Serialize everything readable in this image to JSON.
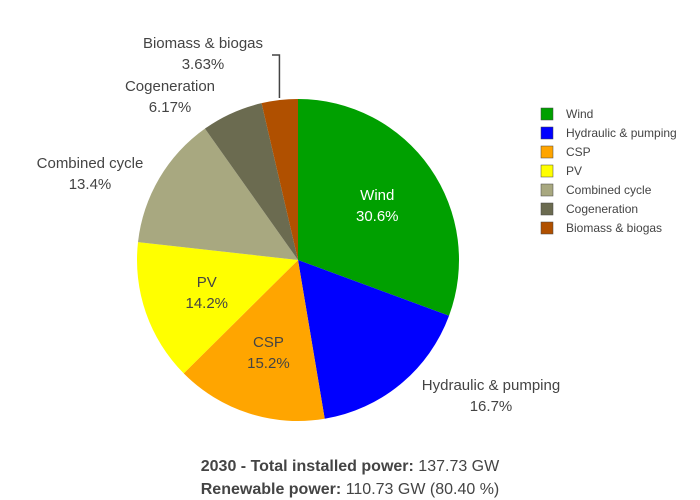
{
  "chart_data": {
    "type": "pie",
    "slices": [
      {
        "label": "Wind",
        "value": 30.6,
        "percent_text": "30.6%",
        "color": "#00a000"
      },
      {
        "label": "Hydraulic & pumping",
        "value": 16.7,
        "percent_text": "16.7%",
        "color": "#0000ff"
      },
      {
        "label": "CSP",
        "value": 15.2,
        "percent_text": "15.2%",
        "color": "#ffa500"
      },
      {
        "label": "PV",
        "value": 14.2,
        "percent_text": "14.2%",
        "color": "#ffff00"
      },
      {
        "label": "Combined cycle",
        "value": 13.4,
        "percent_text": "13.4%",
        "color": "#a8a880"
      },
      {
        "label": "Cogeneration",
        "value": 6.17,
        "percent_text": "6.17%",
        "color": "#6b6b50"
      },
      {
        "label": "Biomass & biogas",
        "value": 3.63,
        "percent_text": "3.63%",
        "color": "#b05000"
      }
    ],
    "legend_position": "right",
    "direction": "clockwise",
    "start": "top"
  },
  "caption": {
    "line1_bold": "2030 - Total installed power:",
    "line1_value": "137.73 GW",
    "line2_bold": "Renewable power:",
    "line2_value": "110.73 GW (80.40 %)"
  }
}
